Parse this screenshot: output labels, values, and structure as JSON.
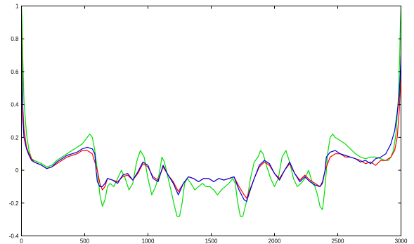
{
  "chart_data": {
    "type": "line",
    "title": "",
    "xlabel": "",
    "ylabel": "",
    "xlim": [
      0,
      3000
    ],
    "ylim": [
      -0.4,
      1.0
    ],
    "grid": false,
    "x_ticks": [
      0,
      500,
      1000,
      1500,
      2000,
      2500,
      3000
    ],
    "x_tick_labels": [
      "0",
      "500",
      "1000",
      "1500",
      "2000",
      "2500",
      "3000"
    ],
    "y_ticks": [
      -0.4,
      -0.2,
      0,
      0.2,
      0.4,
      0.6,
      0.8,
      1.0
    ],
    "y_tick_labels": [
      "-0.4",
      "-0.2",
      "0",
      "0.2",
      "0.4",
      "0.6",
      "0.8",
      "1"
    ],
    "series": [
      {
        "color": "#00dd00",
        "x": [
          0,
          5,
          10,
          20,
          40,
          60,
          80,
          100,
          130,
          160,
          200,
          240,
          280,
          320,
          360,
          400,
          440,
          480,
          520,
          540,
          560,
          580,
          600,
          620,
          640,
          660,
          680,
          700,
          730,
          760,
          790,
          820,
          850,
          880,
          910,
          940,
          970,
          1000,
          1030,
          1060,
          1090,
          1110,
          1130,
          1160,
          1190,
          1210,
          1230,
          1250,
          1270,
          1290,
          1310,
          1340,
          1370,
          1400,
          1430,
          1460,
          1490,
          1520,
          1550,
          1580,
          1610,
          1640,
          1670,
          1690,
          1710,
          1730,
          1750,
          1770,
          1790,
          1810,
          1840,
          1870,
          1890,
          1910,
          1940,
          1970,
          2000,
          2030,
          2060,
          2090,
          2120,
          2150,
          2180,
          2210,
          2240,
          2270,
          2300,
          2320,
          2340,
          2360,
          2380,
          2400,
          2420,
          2440,
          2460,
          2480,
          2520,
          2560,
          2600,
          2640,
          2680,
          2720,
          2760,
          2800,
          2840,
          2870,
          2900,
          2920,
          2940,
          2960,
          2980,
          2990,
          2995,
          3000
        ],
        "y": [
          1.0,
          0.9,
          0.7,
          0.42,
          0.22,
          0.12,
          0.07,
          0.06,
          0.05,
          0.04,
          0.02,
          0.03,
          0.06,
          0.08,
          0.1,
          0.12,
          0.14,
          0.16,
          0.2,
          0.22,
          0.2,
          0.12,
          0.0,
          -0.15,
          -0.22,
          -0.18,
          -0.1,
          -0.08,
          -0.1,
          -0.05,
          0.0,
          -0.05,
          -0.12,
          -0.08,
          0.05,
          0.12,
          0.08,
          -0.05,
          -0.15,
          -0.1,
          -0.02,
          0.08,
          0.05,
          -0.05,
          -0.15,
          -0.22,
          -0.28,
          -0.28,
          -0.2,
          -0.08,
          -0.05,
          -0.08,
          -0.12,
          -0.1,
          -0.08,
          -0.1,
          -0.1,
          -0.12,
          -0.15,
          -0.12,
          -0.1,
          -0.08,
          -0.05,
          -0.08,
          -0.2,
          -0.28,
          -0.28,
          -0.22,
          -0.15,
          -0.05,
          0.05,
          0.08,
          0.12,
          0.1,
          0.02,
          -0.05,
          -0.1,
          -0.05,
          0.08,
          0.12,
          0.05,
          -0.05,
          -0.1,
          -0.08,
          -0.05,
          0.0,
          -0.08,
          -0.1,
          -0.15,
          -0.22,
          -0.24,
          -0.1,
          0.1,
          0.2,
          0.22,
          0.2,
          0.18,
          0.16,
          0.13,
          0.1,
          0.08,
          0.07,
          0.08,
          0.08,
          0.07,
          0.06,
          0.06,
          0.08,
          0.12,
          0.22,
          0.45,
          0.7,
          0.9,
          1.0
        ]
      },
      {
        "color": "#ff0000",
        "x": [
          0,
          5,
          10,
          20,
          40,
          60,
          80,
          100,
          130,
          160,
          200,
          240,
          280,
          320,
          360,
          400,
          440,
          480,
          520,
          560,
          600,
          620,
          640,
          660,
          680,
          720,
          760,
          800,
          840,
          880,
          920,
          960,
          1000,
          1040,
          1080,
          1120,
          1160,
          1200,
          1240,
          1280,
          1320,
          1360,
          1400,
          1440,
          1480,
          1520,
          1560,
          1600,
          1640,
          1680,
          1720,
          1760,
          1780,
          1800,
          1840,
          1880,
          1920,
          1960,
          2000,
          2040,
          2080,
          2120,
          2160,
          2200,
          2240,
          2280,
          2320,
          2360,
          2380,
          2400,
          2440,
          2480,
          2520,
          2560,
          2600,
          2640,
          2680,
          2720,
          2760,
          2800,
          2840,
          2880,
          2920,
          2950,
          2970,
          2985,
          2995,
          3000
        ],
        "y": [
          0.85,
          0.6,
          0.4,
          0.25,
          0.14,
          0.1,
          0.07,
          0.05,
          0.04,
          0.03,
          0.01,
          0.02,
          0.04,
          0.06,
          0.08,
          0.09,
          0.1,
          0.12,
          0.12,
          0.1,
          0.0,
          -0.08,
          -0.12,
          -0.1,
          -0.05,
          -0.06,
          -0.07,
          -0.04,
          -0.03,
          -0.06,
          -0.02,
          0.04,
          0.02,
          -0.04,
          -0.06,
          0.02,
          -0.03,
          -0.07,
          -0.13,
          -0.08,
          -0.04,
          -0.05,
          -0.07,
          -0.05,
          -0.05,
          -0.07,
          -0.05,
          -0.06,
          -0.05,
          -0.04,
          -0.1,
          -0.15,
          -0.17,
          -0.13,
          -0.05,
          0.02,
          0.05,
          0.03,
          -0.02,
          -0.05,
          0.0,
          0.04,
          -0.02,
          -0.06,
          -0.03,
          -0.06,
          -0.08,
          -0.1,
          -0.08,
          0.0,
          0.08,
          0.1,
          0.1,
          0.08,
          0.08,
          0.07,
          0.06,
          0.04,
          0.05,
          0.03,
          0.06,
          0.06,
          0.08,
          0.12,
          0.2,
          0.35,
          0.5,
          0.6
        ]
      },
      {
        "color": "#0000dd",
        "x": [
          0,
          5,
          10,
          20,
          40,
          60,
          80,
          100,
          130,
          160,
          200,
          240,
          280,
          320,
          360,
          400,
          440,
          480,
          520,
          560,
          580,
          590,
          600,
          620,
          640,
          660,
          680,
          720,
          760,
          800,
          840,
          880,
          920,
          960,
          1000,
          1040,
          1080,
          1120,
          1160,
          1200,
          1240,
          1280,
          1320,
          1360,
          1400,
          1440,
          1480,
          1520,
          1560,
          1600,
          1640,
          1680,
          1720,
          1760,
          1780,
          1800,
          1840,
          1880,
          1920,
          1960,
          2000,
          2040,
          2080,
          2120,
          2160,
          2200,
          2240,
          2280,
          2320,
          2360,
          2380,
          2400,
          2410,
          2440,
          2480,
          2520,
          2560,
          2600,
          2640,
          2680,
          2720,
          2760,
          2800,
          2840,
          2880,
          2920,
          2950,
          2970,
          2985,
          2995,
          3000
        ],
        "y": [
          0.72,
          0.5,
          0.32,
          0.2,
          0.13,
          0.09,
          0.06,
          0.05,
          0.04,
          0.03,
          0.01,
          0.02,
          0.05,
          0.07,
          0.09,
          0.1,
          0.11,
          0.13,
          0.14,
          0.13,
          0.1,
          0.0,
          -0.07,
          -0.1,
          -0.1,
          -0.08,
          -0.05,
          -0.06,
          -0.08,
          -0.03,
          -0.02,
          -0.06,
          -0.01,
          0.05,
          0.03,
          -0.05,
          -0.07,
          0.03,
          -0.03,
          -0.08,
          -0.15,
          -0.08,
          -0.04,
          -0.05,
          -0.07,
          -0.05,
          -0.05,
          -0.07,
          -0.05,
          -0.06,
          -0.05,
          -0.04,
          -0.12,
          -0.18,
          -0.19,
          -0.14,
          -0.05,
          0.03,
          0.06,
          0.04,
          -0.02,
          -0.06,
          0.0,
          0.05,
          -0.02,
          -0.07,
          -0.04,
          -0.07,
          -0.09,
          -0.1,
          -0.07,
          0.0,
          0.08,
          0.11,
          0.12,
          0.1,
          0.09,
          0.08,
          0.07,
          0.05,
          0.06,
          0.04,
          0.07,
          0.08,
          0.1,
          0.16,
          0.24,
          0.35,
          0.45,
          0.6,
          0.7
        ]
      }
    ]
  }
}
